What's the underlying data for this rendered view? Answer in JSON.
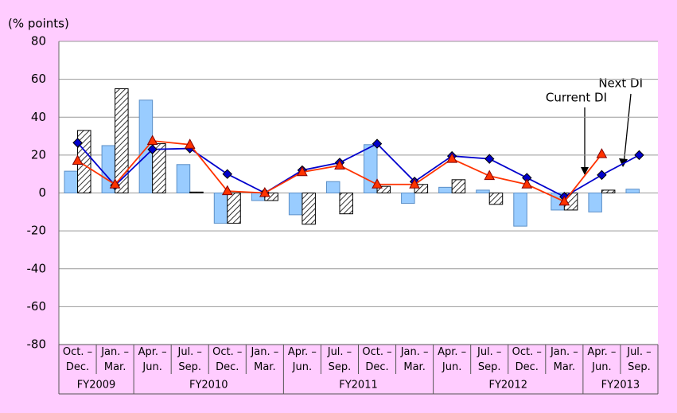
{
  "chart_data": {
    "type": "bar_line",
    "y_label": "(% points)",
    "categories": [
      "Oct. –\nDec.",
      "Jan. –\nMar.",
      "Apr. –\nJun.",
      "Jul. –\nSep.",
      "Oct. –\nDec.",
      "Jan. –\nMar.",
      "Apr. –\nJun.",
      "Jul. –\nSep.",
      "Oct. –\nDec.",
      "Jan. –\nMar.",
      "Apr. –\nJun.",
      "Jul. –\nSep.",
      "Oct. –\nDec.",
      "Jan. –\nMar.",
      "Apr. –\nJun.",
      "Jul. –\nSep."
    ],
    "groups": [
      "FY2009",
      "FY2010",
      "FY2011",
      "FY2012",
      "FY2013"
    ],
    "series": [
      {
        "kind": "bar",
        "color": "#99ccff",
        "values": [
          11.5,
          25,
          49,
          15,
          -16,
          -4,
          -11.5,
          6,
          25.5,
          -5.5,
          3,
          1.5,
          -17.5,
          -9,
          -10,
          2
        ]
      },
      {
        "kind": "hatched-bar",
        "color": "#000000",
        "values": [
          33,
          55,
          26,
          0.5,
          -16,
          -4,
          -16.5,
          -11,
          3.5,
          4.5,
          7,
          -6,
          0,
          -9,
          1.5,
          null
        ]
      },
      {
        "kind": "line",
        "marker": "diamond",
        "color": "#0000cc",
        "values": [
          26.5,
          4,
          23,
          23.5,
          10,
          0,
          12,
          16,
          26,
          6,
          19.5,
          18,
          8,
          -2,
          9.5,
          20
        ]
      },
      {
        "kind": "line",
        "marker": "triangle",
        "color": "#ff3300",
        "values": [
          17,
          4.5,
          27.5,
          25.5,
          1,
          0,
          11,
          14.5,
          4.5,
          4.5,
          18,
          9,
          4.5,
          -4.5,
          20.5,
          null
        ]
      }
    ],
    "annotations": [
      "Current DI",
      "Next DI"
    ],
    "ylim": [
      -80,
      80
    ],
    "yticks": [
      -80,
      -60,
      -40,
      -20,
      0,
      20,
      40,
      60,
      80
    ],
    "grid": true
  }
}
